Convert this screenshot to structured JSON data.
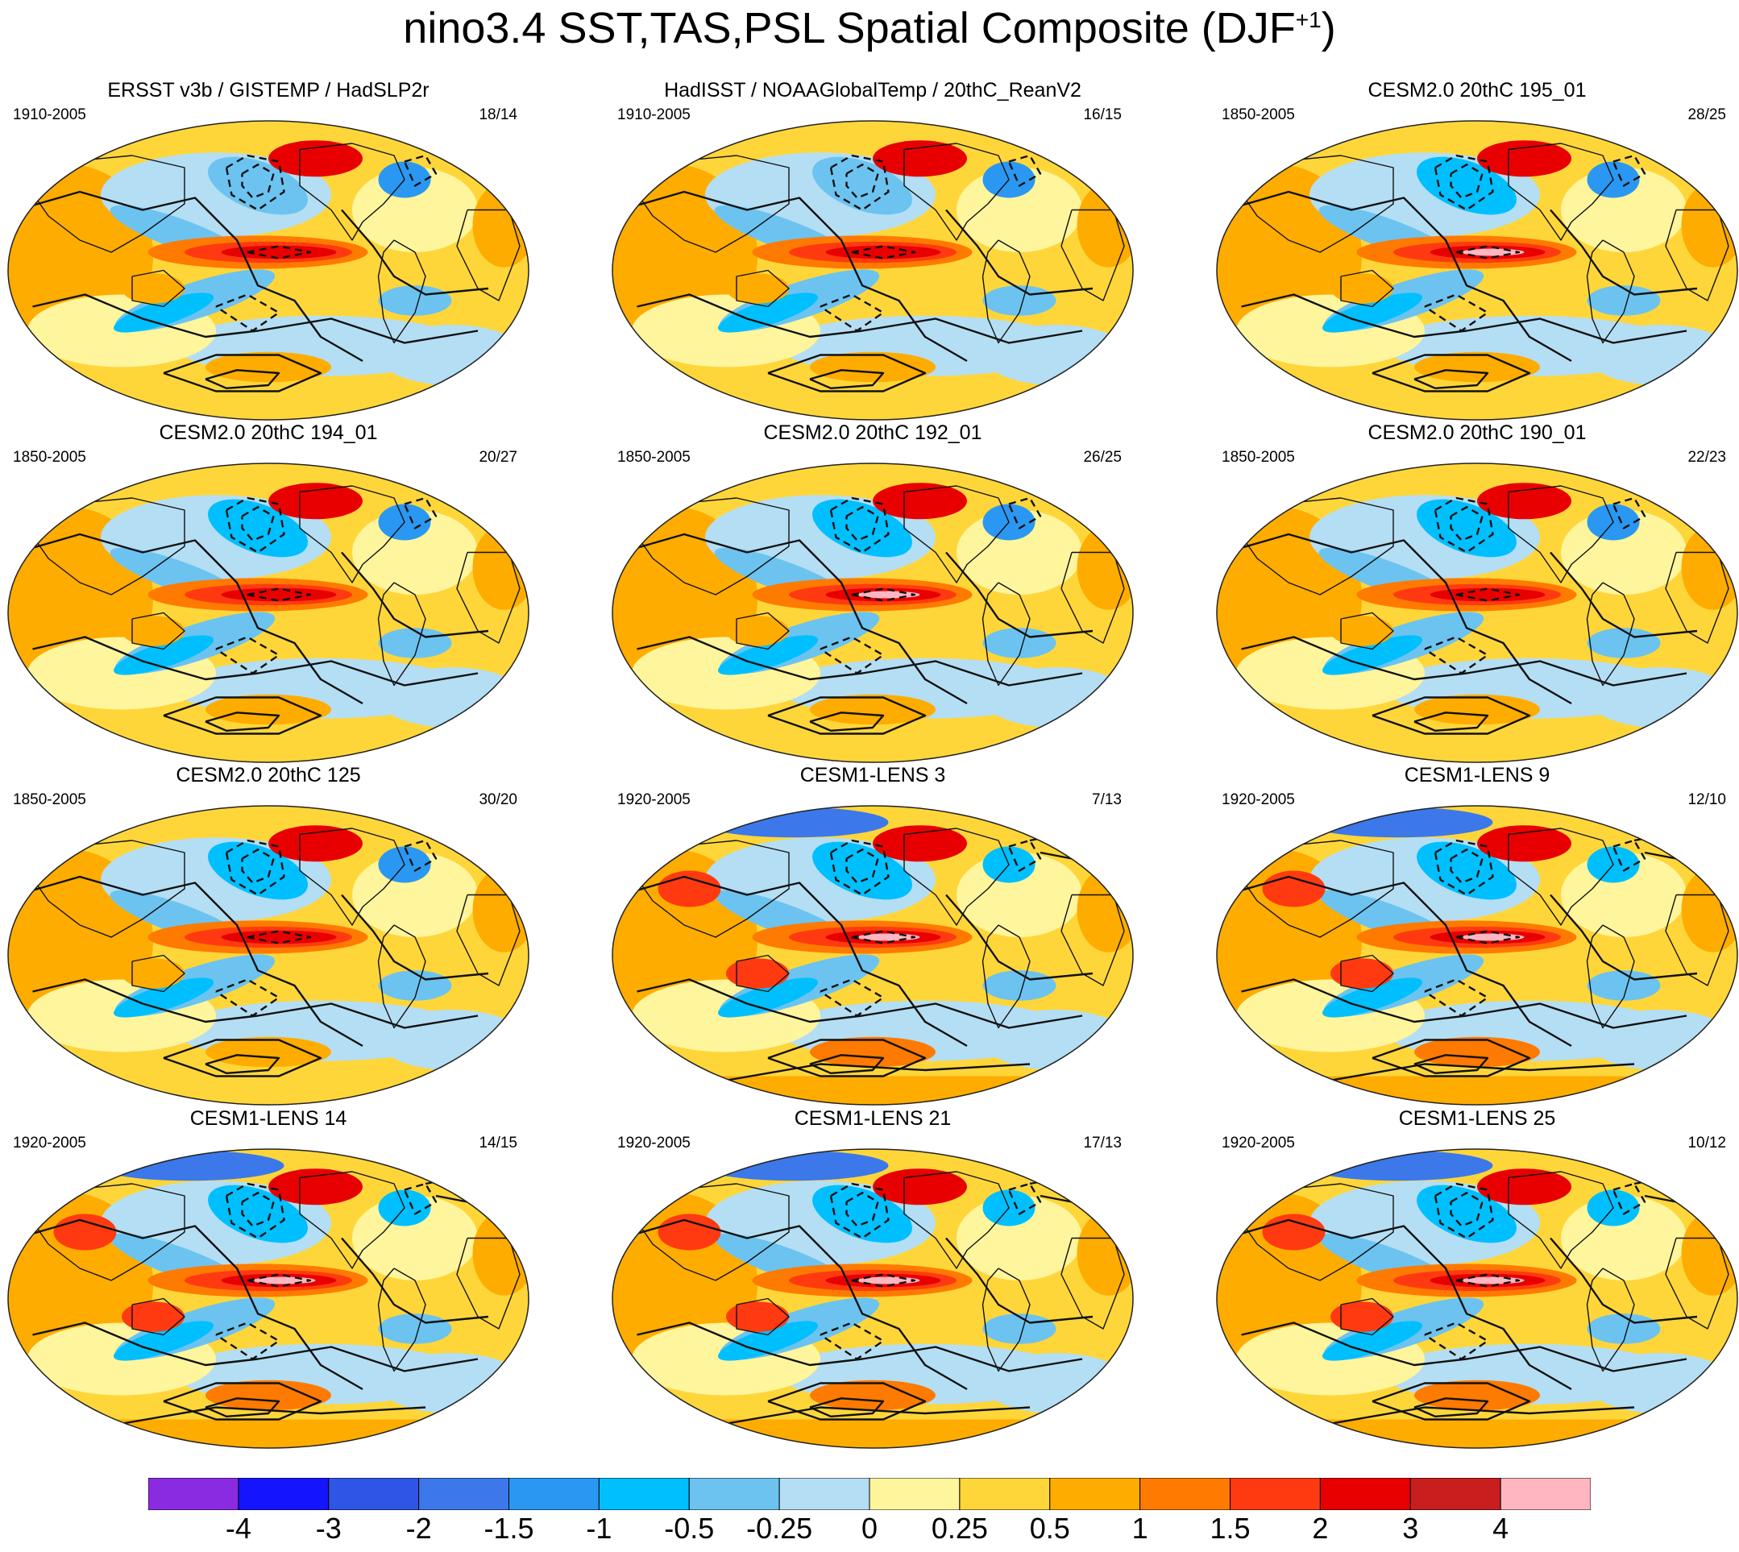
{
  "figure": {
    "title": "nino3.4 SST,TAS,PSL Spatial Composite (DJF",
    "title_superscript": "+1",
    "title_close": ")"
  },
  "panels": [
    {
      "title": "ERSST v3b / GISTEMP / HadSLP2r",
      "period": "1910-2005",
      "count": "18/14",
      "style": "obs"
    },
    {
      "title": "HadISST / NOAAGlobalTemp / 20thC_ReanV2",
      "period": "1910-2005",
      "count": "16/15",
      "style": "obs"
    },
    {
      "title": "CESM2.0 20thC 195_01",
      "period": "1850-2005",
      "count": "28/25",
      "style": "strong"
    },
    {
      "title": "CESM2.0 20thC 194_01",
      "period": "1850-2005",
      "count": "20/27",
      "style": "cesm2"
    },
    {
      "title": "CESM2.0 20thC 192_01",
      "period": "1850-2005",
      "count": "26/25",
      "style": "strong"
    },
    {
      "title": "CESM2.0 20thC 190_01",
      "period": "1850-2005",
      "count": "22/23",
      "style": "cesm2"
    },
    {
      "title": "CESM2.0 20thC 125",
      "period": "1850-2005",
      "count": "30/20",
      "style": "cesm2"
    },
    {
      "title": "CESM1-LENS 3",
      "period": "1920-2005",
      "count": "7/13",
      "style": "lens"
    },
    {
      "title": "CESM1-LENS 9",
      "period": "1920-2005",
      "count": "12/10",
      "style": "lens"
    },
    {
      "title": "CESM1-LENS 14",
      "period": "1920-2005",
      "count": "14/15",
      "style": "lens"
    },
    {
      "title": "CESM1-LENS 21",
      "period": "1920-2005",
      "count": "17/13",
      "style": "lens"
    },
    {
      "title": "CESM1-LENS 25",
      "period": "1920-2005",
      "count": "10/12",
      "style": "lens"
    }
  ],
  "colorbar": {
    "colors": [
      "#8a2be2",
      "#1414ff",
      "#2f55e6",
      "#3c78ea",
      "#2a98f2",
      "#00bfff",
      "#6cc3f0",
      "#b4def3",
      "#fff59d",
      "#ffd63a",
      "#ffac00",
      "#ff7a00",
      "#ff3a10",
      "#e80000",
      "#c81e1e",
      "#ffb6c1"
    ],
    "labels": [
      "-4",
      "-3",
      "-2",
      "-1.5",
      "-1",
      "-0.5",
      "-0.25",
      "0",
      "0.25",
      "0.5",
      "1",
      "1.5",
      "2",
      "3",
      "4"
    ]
  }
}
